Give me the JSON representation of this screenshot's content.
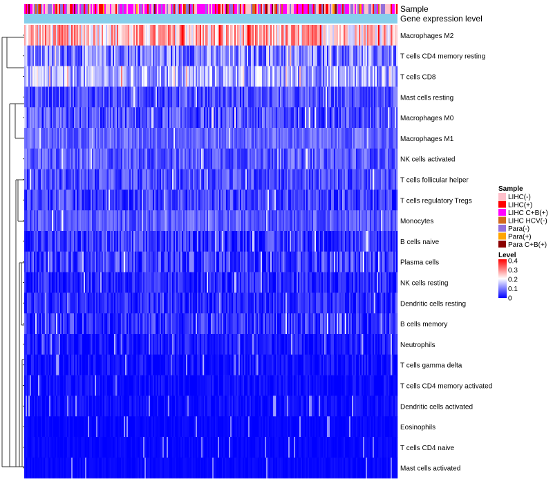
{
  "chart_data": {
    "type": "heatmap",
    "title": "",
    "annotation_tracks": [
      "Sample",
      "Gene expression level"
    ],
    "rows": [
      {
        "label": "Macrophages M2",
        "mean": 0.25,
        "spread": 0.1
      },
      {
        "label": "T cells CD4 memory resting",
        "mean": 0.1,
        "spread": 0.08
      },
      {
        "label": "T cells CD8",
        "mean": 0.13,
        "spread": 0.08
      },
      {
        "label": "Mast cells resting",
        "mean": 0.06,
        "spread": 0.05
      },
      {
        "label": "Macrophages M0",
        "mean": 0.06,
        "spread": 0.06
      },
      {
        "label": "Macrophages M1",
        "mean": 0.08,
        "spread": 0.04
      },
      {
        "label": "NK cells activated",
        "mean": 0.07,
        "spread": 0.05
      },
      {
        "label": "T cells follicular helper",
        "mean": 0.06,
        "spread": 0.05
      },
      {
        "label": "T cells regulatory  Tregs",
        "mean": 0.05,
        "spread": 0.05
      },
      {
        "label": "Monocytes",
        "mean": 0.07,
        "spread": 0.04
      },
      {
        "label": "B cells naive",
        "mean": 0.04,
        "spread": 0.05
      },
      {
        "label": "Plasma cells",
        "mean": 0.05,
        "spread": 0.06
      },
      {
        "label": "NK cells resting",
        "mean": 0.03,
        "spread": 0.04
      },
      {
        "label": "Dendritic cells resting",
        "mean": 0.03,
        "spread": 0.04
      },
      {
        "label": "B cells memory",
        "mean": 0.04,
        "spread": 0.05
      },
      {
        "label": "Neutrophils",
        "mean": 0.02,
        "spread": 0.03
      },
      {
        "label": "T cells gamma delta",
        "mean": 0.01,
        "spread": 0.03
      },
      {
        "label": "T cells CD4 memory activated",
        "mean": 0.01,
        "spread": 0.02
      },
      {
        "label": "Dendritic cells activated",
        "mean": 0.01,
        "spread": 0.02
      },
      {
        "label": "Eosinophils",
        "mean": 0.005,
        "spread": 0.01
      },
      {
        "label": "T cells CD4 naive",
        "mean": 0.005,
        "spread": 0.01
      },
      {
        "label": "Mast cells activated",
        "mean": 0.005,
        "spread": 0.01
      }
    ],
    "sample_legend": {
      "title": "Sample",
      "entries": [
        {
          "label": "LIHC(-)",
          "color": "#ffc0cb"
        },
        {
          "label": "LIHC(+)",
          "color": "#ff0000"
        },
        {
          "label": "LIHC C+B(+)",
          "color": "#ff00ff"
        },
        {
          "label": "LIHC HCV(-)",
          "color": "#d2691e"
        },
        {
          "label": "Para(-)",
          "color": "#9370db"
        },
        {
          "label": "Para(+)",
          "color": "#ffa500"
        },
        {
          "label": "Para C+B(+)",
          "color": "#8b0000"
        }
      ]
    },
    "level_legend": {
      "title": "Level",
      "ticks": [
        "0.4",
        "0.3",
        "0.2",
        "0.1",
        "0"
      ],
      "range": [
        0,
        0.4
      ],
      "colors": [
        "#0000ff",
        "#ffffff",
        "#ff0000"
      ]
    },
    "expression_track_color": "#87ceeb"
  }
}
